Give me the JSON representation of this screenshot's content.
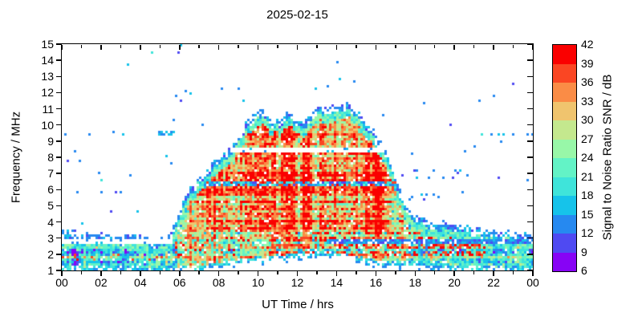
{
  "chart_data": {
    "type": "heatmap",
    "title": "2025-02-15",
    "xlabel": "UT Time / hrs",
    "ylabel": "Frequency / MHz",
    "x_range": [
      0,
      24
    ],
    "y_range": [
      1,
      15
    ],
    "grid": false,
    "x_ticks": {
      "hours": [
        0,
        2,
        4,
        6,
        8,
        10,
        12,
        14,
        16,
        18,
        20,
        22,
        24
      ],
      "labels": [
        "00",
        "02",
        "04",
        "06",
        "08",
        "10",
        "12",
        "14",
        "16",
        "18",
        "20",
        "22",
        "00"
      ],
      "minor_every_hours": 1
    },
    "y_ticks": {
      "values": [
        1,
        2,
        3,
        4,
        5,
        6,
        7,
        8,
        9,
        10,
        11,
        12,
        13,
        14,
        15
      ],
      "labels": [
        "1",
        "2",
        "3",
        "4",
        "5",
        "6",
        "7",
        "8",
        "9",
        "10",
        "11",
        "12",
        "13",
        "14",
        "15"
      ]
    },
    "colorbar": {
      "label": "Signal to Noise Ratio SNR / dB",
      "min": 6,
      "max": 42,
      "step": 3,
      "tick_labels": [
        "6",
        "9",
        "12",
        "15",
        "18",
        "21",
        "24",
        "27",
        "30",
        "33",
        "36",
        "39",
        "42"
      ],
      "colors": [
        "#8703f5",
        "#4f4af2",
        "#2689f0",
        "#16c3ea",
        "#3fe4da",
        "#63f3c6",
        "#98f7a8",
        "#c4e88e",
        "#f0c46e",
        "#fa8c46",
        "#fa4623",
        "#fa0000"
      ]
    },
    "envelope_mhz_by_hour": [
      [
        0,
        3.15
      ],
      [
        1,
        3.1
      ],
      [
        2,
        3.05
      ],
      [
        3,
        3.0
      ],
      [
        4,
        2.85
      ],
      [
        4.6,
        2.6
      ],
      [
        5.2,
        2.7
      ],
      [
        5.6,
        3.3
      ],
      [
        6,
        4.5
      ],
      [
        6.5,
        5.9
      ],
      [
        7,
        6.7
      ],
      [
        7.5,
        7.2
      ],
      [
        8,
        7.7
      ],
      [
        8.5,
        8.3
      ],
      [
        9,
        9.4
      ],
      [
        9.5,
        10.0
      ],
      [
        10.2,
        10.8
      ],
      [
        10.6,
        10.3
      ],
      [
        11,
        10.1
      ],
      [
        11.4,
        10.7
      ],
      [
        11.8,
        10.5
      ],
      [
        12.2,
        9.9
      ],
      [
        12.6,
        10.3
      ],
      [
        13,
        10.9
      ],
      [
        13.4,
        11.0
      ],
      [
        13.8,
        11.1
      ],
      [
        14.2,
        11.1
      ],
      [
        14.6,
        11.2
      ],
      [
        15,
        10.7
      ],
      [
        15.4,
        10.1
      ],
      [
        15.8,
        9.5
      ],
      [
        16.2,
        8.9
      ],
      [
        16.6,
        8.0
      ],
      [
        17,
        6.6
      ],
      [
        17.4,
        5.2
      ],
      [
        17.8,
        4.5
      ],
      [
        18.2,
        4.2
      ],
      [
        19,
        3.9
      ],
      [
        20,
        3.6
      ],
      [
        21,
        3.45
      ],
      [
        22,
        3.3
      ],
      [
        23,
        3.2
      ],
      [
        24,
        3.15
      ]
    ],
    "lower_cutoff_mhz_by_hour": [
      [
        0,
        1.0
      ],
      [
        7,
        1.0
      ],
      [
        8,
        1.25
      ],
      [
        9,
        1.45
      ],
      [
        10,
        1.6
      ],
      [
        11,
        1.7
      ],
      [
        12,
        1.8
      ],
      [
        13,
        1.85
      ],
      [
        13.8,
        1.9
      ],
      [
        14.5,
        1.75
      ],
      [
        15.5,
        1.5
      ],
      [
        16.2,
        1.35
      ],
      [
        17,
        1.3
      ],
      [
        18,
        1.25
      ],
      [
        19,
        1.12
      ],
      [
        20,
        1.05
      ],
      [
        21,
        1.0
      ],
      [
        24,
        1.0
      ]
    ],
    "dome_core_snr_by_hour": [
      [
        5.8,
        22
      ],
      [
        6.6,
        30
      ],
      [
        7.4,
        36
      ],
      [
        8.5,
        37
      ],
      [
        16.2,
        37
      ],
      [
        17.0,
        30
      ],
      [
        17.8,
        24
      ]
    ],
    "low_band_snr_by_hour": [
      [
        0,
        19
      ],
      [
        4.5,
        18
      ],
      [
        6,
        26
      ],
      [
        7,
        29
      ],
      [
        9,
        29
      ],
      [
        13,
        28
      ],
      [
        16,
        27
      ],
      [
        17.5,
        25
      ],
      [
        19,
        23
      ],
      [
        21,
        20
      ],
      [
        24,
        19
      ]
    ],
    "notch_bands": [
      {
        "f_low": 8.3,
        "f_high": 8.58,
        "style": "blank"
      },
      {
        "f_low": 6.25,
        "f_high": 6.52,
        "style": "weak"
      },
      {
        "f_low": 4.95,
        "f_high": 5.1,
        "style": "dim"
      }
    ],
    "night_gap": {
      "t_end": 5.6,
      "f_low": 2.6,
      "f_high": 2.92
    },
    "evening_blue_row": {
      "t_start": 13.5,
      "f_low": 2.62,
      "f_high": 2.92
    },
    "red_streak_rows_mhz": [
      2.05,
      2.5,
      2.95,
      3.35
    ],
    "sparse_strips": [
      {
        "t0": 21.0,
        "t1": 24.0,
        "f0": 9.3,
        "f1": 9.55,
        "p": 0.3
      },
      {
        "t0": 17.3,
        "t1": 20.6,
        "f0": 6.7,
        "f1": 7.25,
        "p": 0.1
      },
      {
        "t0": 17.6,
        "t1": 20.2,
        "f0": 5.1,
        "f1": 5.8,
        "p": 0.06
      },
      {
        "t0": 0.0,
        "t1": 3.2,
        "f0": 9.35,
        "f1": 9.55,
        "p": 0.04
      },
      {
        "t0": 0.5,
        "t1": 3.2,
        "f0": 5.7,
        "f1": 5.95,
        "p": 0.05
      }
    ],
    "scatter_dots": [
      [
        6.1,
        14.9
      ],
      [
        6.35,
        12.1
      ],
      [
        6.6,
        11.9
      ],
      [
        5.8,
        11.8
      ],
      [
        6.5,
        12.0
      ],
      [
        5.7,
        10.3
      ],
      [
        7.2,
        10.0
      ],
      [
        5.6,
        7.6
      ],
      [
        5.3,
        8.1
      ],
      [
        0.15,
        9.45
      ],
      [
        1.35,
        9.45
      ],
      [
        2.6,
        9.5
      ],
      [
        3.1,
        9.4
      ],
      [
        0.8,
        5.8
      ],
      [
        2.0,
        5.85
      ],
      [
        3.0,
        5.8
      ],
      [
        14.1,
        12.8
      ],
      [
        14.9,
        12.7
      ],
      [
        16.3,
        10.6
      ],
      [
        13.5,
        12.4
      ],
      [
        12.9,
        12.3
      ],
      [
        17.8,
        8.2
      ],
      [
        21.0,
        8.6
      ],
      [
        22.4,
        8.9
      ],
      [
        9.3,
        11.5
      ],
      [
        8.2,
        12.2
      ],
      [
        4.2,
        2.95
      ],
      [
        3.6,
        3.1
      ]
    ],
    "dot_cluster": {
      "t": 5.35,
      "f": 9.5,
      "count": 14,
      "dt": 0.4,
      "df": 0.15
    }
  }
}
